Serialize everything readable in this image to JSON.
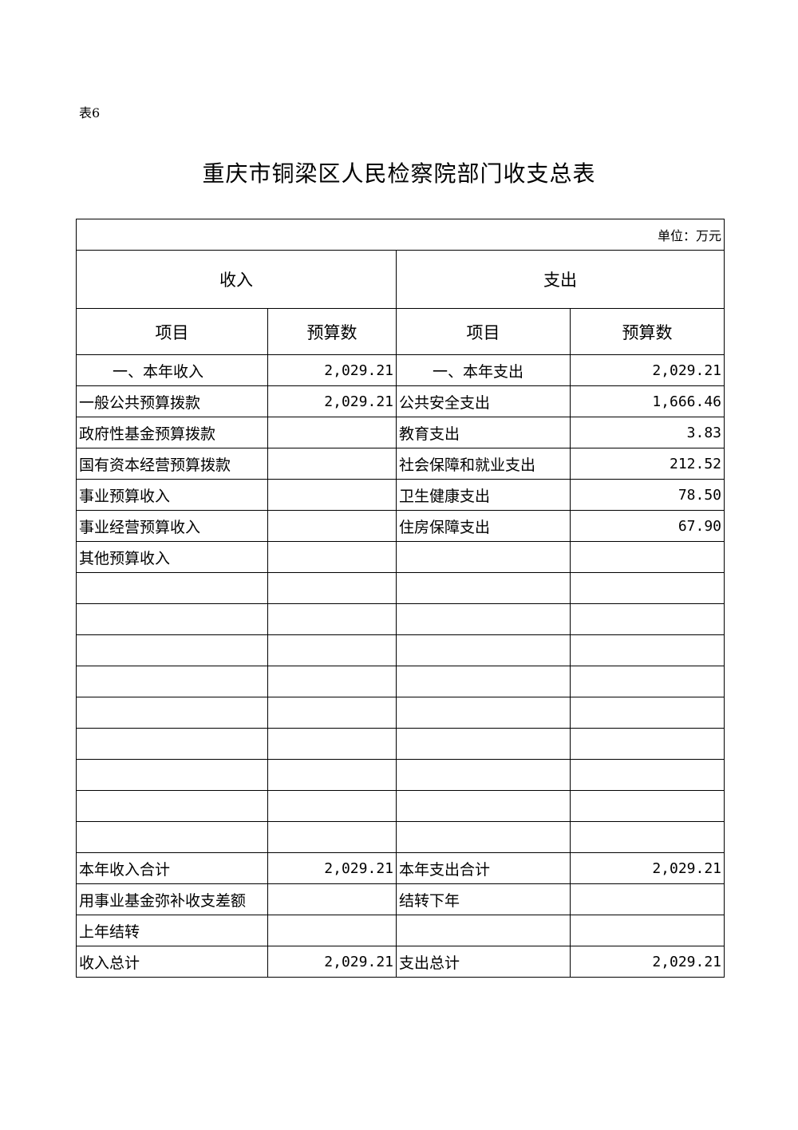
{
  "table_no": "表6",
  "title": "重庆市铜梁区人民检察院部门收支总表",
  "unit": "单位：万元",
  "headers": {
    "income": "收入",
    "expense": "支出",
    "item": "项目",
    "budget": "预算数"
  },
  "rows": [
    {
      "in_item": "一、本年收入",
      "in_val": "2,029.21",
      "out_item": "一、本年支出",
      "out_val": "2,029.21",
      "indent": true
    },
    {
      "in_item": "一般公共预算拨款",
      "in_val": "2,029.21",
      "out_item": "公共安全支出",
      "out_val": "1,666.46"
    },
    {
      "in_item": "政府性基金预算拨款",
      "in_val": "",
      "out_item": "教育支出",
      "out_val": "3.83"
    },
    {
      "in_item": "国有资本经营预算拨款",
      "in_val": "",
      "out_item": "社会保障和就业支出",
      "out_val": "212.52"
    },
    {
      "in_item": "事业预算收入",
      "in_val": "",
      "out_item": "卫生健康支出",
      "out_val": "78.50"
    },
    {
      "in_item": "事业经营预算收入",
      "in_val": "",
      "out_item": "住房保障支出",
      "out_val": "67.90"
    },
    {
      "in_item": "其他预算收入",
      "in_val": "",
      "out_item": "",
      "out_val": ""
    },
    {
      "in_item": "",
      "in_val": "",
      "out_item": "",
      "out_val": ""
    },
    {
      "in_item": "",
      "in_val": "",
      "out_item": "",
      "out_val": ""
    },
    {
      "in_item": "",
      "in_val": "",
      "out_item": "",
      "out_val": ""
    },
    {
      "in_item": "",
      "in_val": "",
      "out_item": "",
      "out_val": ""
    },
    {
      "in_item": "",
      "in_val": "",
      "out_item": "",
      "out_val": ""
    },
    {
      "in_item": "",
      "in_val": "",
      "out_item": "",
      "out_val": ""
    },
    {
      "in_item": "",
      "in_val": "",
      "out_item": "",
      "out_val": ""
    },
    {
      "in_item": "",
      "in_val": "",
      "out_item": "",
      "out_val": ""
    },
    {
      "in_item": "",
      "in_val": "",
      "out_item": "",
      "out_val": ""
    },
    {
      "in_item": "本年收入合计",
      "in_val": "2,029.21",
      "out_item": "本年支出合计",
      "out_val": "2,029.21"
    },
    {
      "in_item": "用事业基金弥补收支差额",
      "in_val": "",
      "out_item": "结转下年",
      "out_val": ""
    },
    {
      "in_item": "上年结转",
      "in_val": "",
      "out_item": "",
      "out_val": ""
    },
    {
      "in_item": "收入总计",
      "in_val": "2,029.21",
      "out_item": "支出总计",
      "out_val": "2,029.21"
    }
  ]
}
